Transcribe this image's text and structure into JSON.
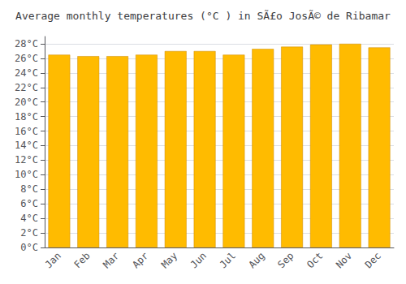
{
  "chart_data": {
    "type": "bar",
    "title": "Average monthly temperatures (°C ) in SÃ£o JosÃ© de Ribamar",
    "categories": [
      "Jan",
      "Feb",
      "Mar",
      "Apr",
      "May",
      "Jun",
      "Jul",
      "Aug",
      "Sep",
      "Oct",
      "Nov",
      "Dec"
    ],
    "values": [
      26.5,
      26.3,
      26.3,
      26.5,
      27.0,
      27.0,
      26.5,
      27.3,
      27.6,
      27.9,
      28.0,
      27.5
    ],
    "color": "#FFBB00",
    "ylim": [
      0,
      29
    ],
    "yticks": [
      {
        "value": 0,
        "label": "0°C"
      },
      {
        "value": 2,
        "label": "2°C"
      },
      {
        "value": 4,
        "label": "4°C"
      },
      {
        "value": 6,
        "label": "6°C"
      },
      {
        "value": 8,
        "label": "8°C"
      },
      {
        "value": 10,
        "label": "10°C"
      },
      {
        "value": 12,
        "label": "12°C"
      },
      {
        "value": 14,
        "label": "14°C"
      },
      {
        "value": 16,
        "label": "16°C"
      },
      {
        "value": 18,
        "label": "18°C"
      },
      {
        "value": 20,
        "label": "20°C"
      },
      {
        "value": 22,
        "label": "22°C"
      },
      {
        "value": 24,
        "label": "24°C"
      },
      {
        "value": 26,
        "label": "26°C"
      },
      {
        "value": 28,
        "label": "28°C"
      }
    ],
    "grid": true
  }
}
